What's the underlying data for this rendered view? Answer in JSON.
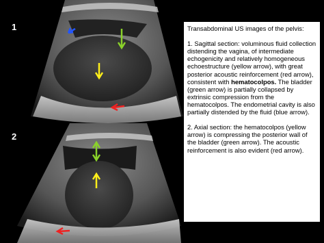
{
  "panels": [
    {
      "label": "1"
    },
    {
      "label": "2"
    }
  ],
  "caption": {
    "title": "Transabdominal  US images of the pelvis:",
    "paragraph_1": {
      "before": "1. Sagittal section: voluminous fluid collection distending the vagina, of intermediate echogenicity and relatively homogeneous echoestructure (yellow arrow), with great posterior acoustic reinforcement (red arrow), consistent with ",
      "bold": "hematocolpos.",
      "after": " The bladder (green arrow) is partially collapsed by extrinsic compression from the hematocolpos. The endometrial cavity is also partially distended by the fluid (blue arrow)."
    },
    "paragraph_2": "2. Axial section: the hematocolpos (yellow arrow) is compressing the posterior wall of the bladder (green arrow). The acoustic reinforcement is also evident (red arrow)."
  }
}
